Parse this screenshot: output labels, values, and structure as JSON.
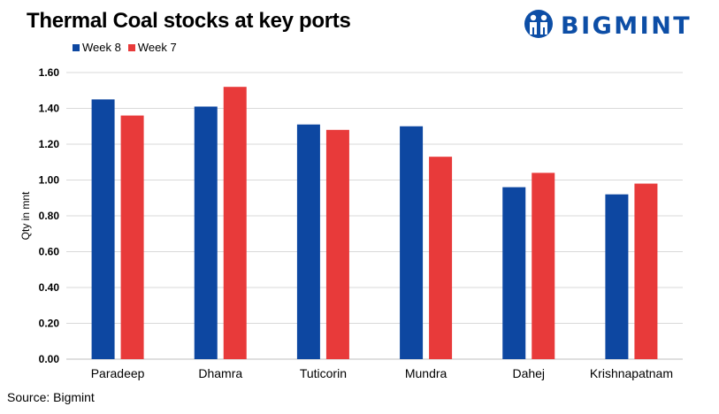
{
  "title": "Thermal Coal stocks at key ports",
  "logo": {
    "text": "BIGMINT",
    "icon": "bigmint-people-icon"
  },
  "source": "Source: Bigmint",
  "colors": {
    "week8": "#0d47a1",
    "week7": "#e83a3a",
    "logo": "#0d4ea6"
  },
  "chart_data": {
    "type": "bar",
    "title": "Thermal Coal stocks at key ports",
    "xlabel": "",
    "ylabel": "Qty in mnt",
    "categories": [
      "Paradeep",
      "Dhamra",
      "Tuticorin",
      "Mundra",
      "Dahej",
      "Krishnapatnam"
    ],
    "series": [
      {
        "name": "Week 8",
        "color": "#0d47a1",
        "values": [
          1.45,
          1.41,
          1.31,
          1.3,
          0.96,
          0.92
        ]
      },
      {
        "name": "Week 7",
        "color": "#e83a3a",
        "values": [
          1.36,
          1.52,
          1.28,
          1.13,
          1.04,
          0.98
        ]
      }
    ],
    "ylim": [
      0,
      1.6
    ],
    "yticks": [
      "0.00",
      "0.20",
      "0.40",
      "0.60",
      "0.80",
      "1.00",
      "1.20",
      "1.40",
      "1.60"
    ],
    "grid": true,
    "legend": "top-left"
  }
}
